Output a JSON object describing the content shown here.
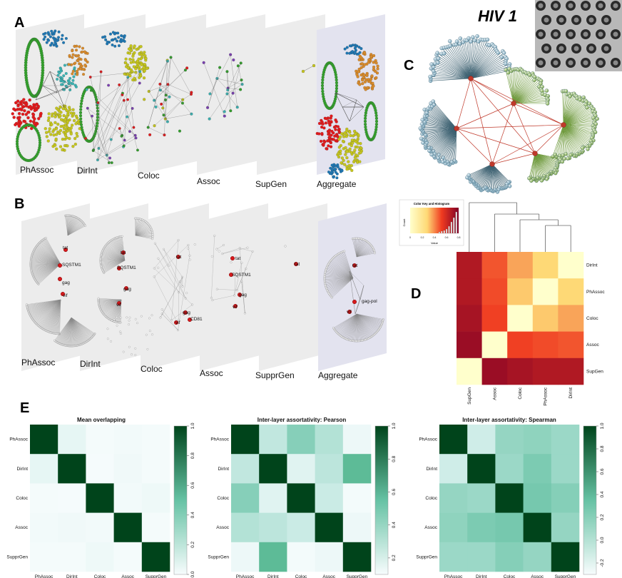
{
  "panel_letters": {
    "a": "A",
    "b": "B",
    "c": "C",
    "d": "D",
    "e": "E"
  },
  "panel_a": {
    "layers": [
      "PhAssoc",
      "DirInt",
      "Coloc",
      "Assoc",
      "SupGen",
      "Aggregate"
    ]
  },
  "panel_b": {
    "layers": [
      "PhAssoc",
      "DirInt",
      "Coloc",
      "Assoc",
      "SupprGen",
      "Aggregate"
    ],
    "node_labels": [
      "tat",
      "SQSTM1",
      "gag",
      "vif",
      "CD81",
      "gag-pol"
    ]
  },
  "panel_c": {
    "title": "HIV 1"
  },
  "panel_d": {
    "key_title": "Color Key and Histogram",
    "key_ylabel": "Count",
    "key_xlabel": "Value",
    "key_ticks": [
      "0",
      "0.2",
      "0.4",
      "0.6",
      "0.8"
    ],
    "row_labels": [
      "DirInt",
      "PhAssoc",
      "Coloc",
      "Assoc",
      "SupGen"
    ],
    "col_labels": [
      "SupGen",
      "Assoc",
      "Coloc",
      "PhAssoc",
      "DirInt"
    ],
    "matrix": [
      [
        0.85,
        0.6,
        0.45,
        0.35,
        0.0
      ],
      [
        0.85,
        0.62,
        0.38,
        0.0,
        0.35
      ],
      [
        0.88,
        0.64,
        0.0,
        0.38,
        0.45
      ],
      [
        0.92,
        0.0,
        0.64,
        0.62,
        0.6
      ],
      [
        0.0,
        0.92,
        0.88,
        0.85,
        0.85
      ]
    ]
  },
  "panel_e": {
    "labels": [
      "PhAssoc",
      "DirInt",
      "Coloc",
      "Assoc",
      "SupprGen"
    ],
    "heatmaps": [
      {
        "title": "Mean overlapping",
        "scale_ticks": [
          "0.0",
          "0.2",
          "0.4",
          "0.6",
          "0.8",
          "1.0"
        ],
        "vmin": 0,
        "vmax": 1,
        "matrix": [
          [
            1.0,
            0.1,
            0.02,
            0.03,
            0.02
          ],
          [
            0.1,
            1.0,
            0.01,
            0.04,
            0.02
          ],
          [
            0.02,
            0.01,
            1.0,
            0.03,
            0.05
          ],
          [
            0.03,
            0.04,
            0.03,
            1.0,
            0.02
          ],
          [
            0.02,
            0.02,
            0.05,
            0.02,
            1.0
          ]
        ]
      },
      {
        "title": "Inter-layer assortativity: Pearson",
        "scale_ticks": [
          "0.2",
          "0.4",
          "0.6",
          "0.8",
          "1.0"
        ],
        "vmin": 0.1,
        "vmax": 1,
        "matrix": [
          [
            1.0,
            0.35,
            0.48,
            0.38,
            0.15
          ],
          [
            0.35,
            1.0,
            0.22,
            0.36,
            0.58
          ],
          [
            0.48,
            0.22,
            1.0,
            0.33,
            0.12
          ],
          [
            0.38,
            0.36,
            0.33,
            1.0,
            0.15
          ],
          [
            0.15,
            0.58,
            0.12,
            0.15,
            1.0
          ]
        ]
      },
      {
        "title": "Inter-layer assortativity: Spearman",
        "scale_ticks": [
          "-0.2",
          "0.0",
          "0.2",
          "0.4",
          "0.6",
          "0.8",
          "1.0"
        ],
        "vmin": -0.3,
        "vmax": 1,
        "matrix": [
          [
            1.0,
            0.0,
            0.2,
            0.22,
            0.18
          ],
          [
            0.0,
            1.0,
            0.18,
            0.28,
            0.18
          ],
          [
            0.2,
            0.18,
            1.0,
            0.3,
            0.25
          ],
          [
            0.22,
            0.28,
            0.3,
            1.0,
            0.2
          ],
          [
            0.18,
            0.18,
            0.25,
            0.2,
            1.0
          ]
        ]
      }
    ]
  }
}
